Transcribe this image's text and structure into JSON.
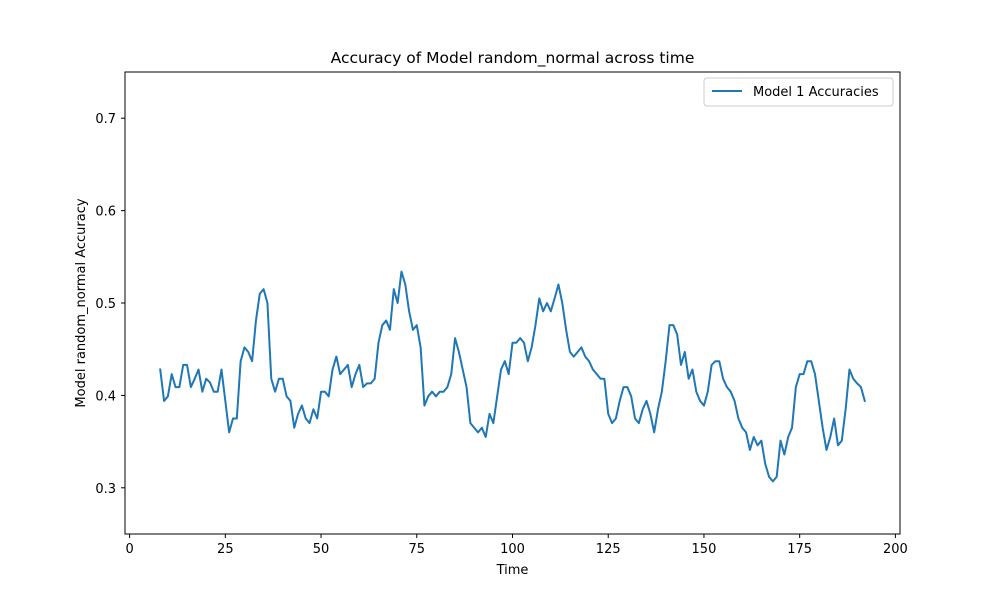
{
  "chart_data": {
    "type": "line",
    "title": "Accuracy of Model random_normal across time",
    "xlabel": "Time",
    "ylabel": "Model random_normal Accuracy",
    "xlim": [
      -1.2,
      201.2
    ],
    "ylim": [
      0.25,
      0.75
    ],
    "xticks": [
      0,
      25,
      50,
      75,
      100,
      125,
      150,
      175,
      200
    ],
    "yticks": [
      0.3,
      0.4,
      0.5,
      0.6,
      0.7
    ],
    "ytick_labels": [
      "0.3",
      "0.4",
      "0.5",
      "0.6",
      "0.7"
    ],
    "grid": false,
    "legend_position": "top-right",
    "colors": {
      "series": "#1f77b4",
      "axes": "#000000",
      "background": "#ffffff"
    },
    "series": [
      {
        "name": "Model 1 Accuracies",
        "x": [
          8,
          9,
          10,
          11,
          12,
          13,
          14,
          15,
          16,
          17,
          18,
          19,
          20,
          21,
          22,
          23,
          24,
          25,
          26,
          27,
          28,
          29,
          30,
          31,
          32,
          33,
          34,
          35,
          36,
          37,
          38,
          39,
          40,
          41,
          42,
          43,
          44,
          45,
          46,
          47,
          48,
          49,
          50,
          51,
          52,
          53,
          54,
          55,
          56,
          57,
          58,
          59,
          60,
          61,
          62,
          63,
          64,
          65,
          66,
          67,
          68,
          69,
          70,
          71,
          72,
          73,
          74,
          75,
          76,
          77,
          78,
          79,
          80,
          81,
          82,
          83,
          84,
          85,
          86,
          87,
          88,
          89,
          90,
          91,
          92,
          93,
          94,
          95,
          96,
          97,
          98,
          99,
          100,
          101,
          102,
          103,
          104,
          105,
          106,
          107,
          108,
          109,
          110,
          111,
          112,
          113,
          114,
          115,
          116,
          117,
          118,
          119,
          120,
          121,
          122,
          123,
          124,
          125,
          126,
          127,
          128,
          129,
          130,
          131,
          132,
          133,
          134,
          135,
          136,
          137,
          138,
          139,
          140,
          141,
          142,
          143,
          144,
          145,
          146,
          147,
          148,
          149,
          150,
          151,
          152,
          153,
          154,
          155,
          156,
          157,
          158,
          159,
          160,
          161,
          162,
          163,
          164,
          165,
          166,
          167,
          168,
          169,
          170,
          171,
          172,
          173,
          174,
          175,
          176,
          177,
          178,
          179,
          180,
          181,
          182,
          183,
          184,
          185,
          186,
          187,
          188,
          189,
          190,
          191,
          192
        ],
        "y": [
          0.428,
          0.394,
          0.399,
          0.423,
          0.409,
          0.409,
          0.433,
          0.433,
          0.409,
          0.418,
          0.428,
          0.404,
          0.418,
          0.414,
          0.404,
          0.404,
          0.428,
          0.394,
          0.36,
          0.375,
          0.375,
          0.437,
          0.452,
          0.447,
          0.437,
          0.481,
          0.51,
          0.515,
          0.5,
          0.418,
          0.404,
          0.418,
          0.418,
          0.399,
          0.394,
          0.365,
          0.38,
          0.389,
          0.375,
          0.37,
          0.385,
          0.375,
          0.404,
          0.404,
          0.399,
          0.428,
          0.442,
          0.423,
          0.428,
          0.433,
          0.409,
          0.423,
          0.433,
          0.409,
          0.413,
          0.413,
          0.418,
          0.457,
          0.476,
          0.481,
          0.471,
          0.515,
          0.5,
          0.534,
          0.52,
          0.491,
          0.471,
          0.476,
          0.452,
          0.389,
          0.399,
          0.404,
          0.399,
          0.404,
          0.404,
          0.409,
          0.423,
          0.462,
          0.447,
          0.428,
          0.409,
          0.37,
          0.365,
          0.36,
          0.365,
          0.355,
          0.38,
          0.37,
          0.399,
          0.428,
          0.437,
          0.423,
          0.457,
          0.457,
          0.462,
          0.457,
          0.437,
          0.452,
          0.476,
          0.505,
          0.491,
          0.5,
          0.491,
          0.505,
          0.52,
          0.5,
          0.471,
          0.447,
          0.442,
          0.447,
          0.452,
          0.442,
          0.437,
          0.428,
          0.423,
          0.418,
          0.418,
          0.38,
          0.37,
          0.375,
          0.394,
          0.409,
          0.409,
          0.399,
          0.375,
          0.37,
          0.385,
          0.394,
          0.38,
          0.36,
          0.385,
          0.404,
          0.437,
          0.476,
          0.476,
          0.466,
          0.433,
          0.447,
          0.418,
          0.428,
          0.404,
          0.394,
          0.389,
          0.404,
          0.433,
          0.437,
          0.437,
          0.418,
          0.409,
          0.404,
          0.394,
          0.375,
          0.365,
          0.36,
          0.341,
          0.355,
          0.346,
          0.351,
          0.326,
          0.312,
          0.307,
          0.312,
          0.351,
          0.336,
          0.355,
          0.365,
          0.409,
          0.423,
          0.423,
          0.437,
          0.437,
          0.423,
          0.394,
          0.365,
          0.341,
          0.355,
          0.375,
          0.346,
          0.351,
          0.385,
          0.428,
          0.418,
          0.413,
          0.409,
          0.394
        ]
      }
    ]
  }
}
